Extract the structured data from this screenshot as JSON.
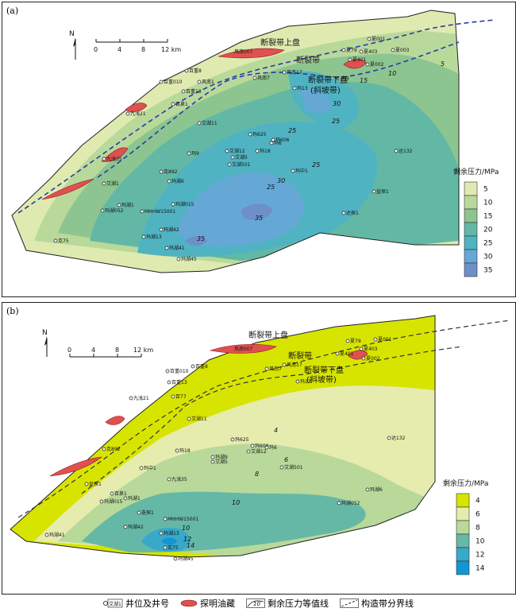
{
  "panel_a": {
    "label": "(a)",
    "legend_title": "剩余压力/MPa",
    "legend_values": [
      "5",
      "10",
      "15",
      "20",
      "25",
      "30",
      "35"
    ],
    "legend_colors": [
      "#dfeab0",
      "#b9d99a",
      "#8cc58f",
      "#63b8a5",
      "#4fb3c2",
      "#65a8d6",
      "#6e8fc8"
    ],
    "contour_labels": [
      "5",
      "10",
      "15",
      "20",
      "25",
      "25",
      "25",
      "25",
      "30",
      "30",
      "35",
      "35"
    ],
    "wells": [
      "风南7",
      "夏001",
      "夏79",
      "夏403",
      "夏401",
      "夏002",
      "夏003",
      "风南17",
      "玛13",
      "百重8",
      "风南1",
      "百重010",
      "百重13",
      "百泉1",
      "九浅21",
      "艾湖11",
      "玛625",
      "玛606",
      "玛6",
      "艾湖12",
      "玛18",
      "艾湖5",
      "艾湖501",
      "玛9",
      "达132",
      "九浅35",
      "克892",
      "玛中1",
      "盆探1",
      "玛湖6",
      "艾湖1",
      "玛湖1",
      "玛湖015",
      "MHHW15001",
      "玛湖052",
      "达探1",
      "玛湖13",
      "玛湖42",
      "克75",
      "玛湖41",
      "玛湖45"
    ],
    "zones": {
      "upper": "断裂带上盘",
      "fault": "断裂带",
      "lower": "断裂带下盘",
      "lower_sub": "(斜坡带)"
    },
    "oilfield_label": "风南007",
    "scale": {
      "north": "N",
      "ticks": [
        "0",
        "4",
        "8",
        "12 km"
      ]
    }
  },
  "panel_b": {
    "label": "(b)",
    "legend_title": "剩余压力/MPa",
    "legend_values": [
      "4",
      "6",
      "8",
      "10",
      "12",
      "14"
    ],
    "legend_colors": [
      "#d7e400",
      "#e6ecad",
      "#b8d99a",
      "#66b8a6",
      "#38a9c9",
      "#1296d4"
    ],
    "contour_labels": [
      "4",
      "6",
      "8",
      "10",
      "10",
      "12",
      "14"
    ],
    "wells": [
      "夏79",
      "夏001",
      "夏403",
      "夏401",
      "夏002",
      "风南7",
      "风南17",
      "玛13",
      "百重8",
      "百重010",
      "百重13",
      "九浅21",
      "百77",
      "艾湖11",
      "达132",
      "玛625",
      "玛606",
      "玛6",
      "艾湖12",
      "玛18",
      "玛湖9",
      "艾湖5",
      "艾湖501",
      "玛中1",
      "克892",
      "九浅35",
      "玛湖6",
      "盆探1",
      "百泉1",
      "玛湖1",
      "玛湖015",
      "玛湖052",
      "迭探1",
      "MHHW15001",
      "玛湖42",
      "玛湖13",
      "玛湖41",
      "克75",
      "玛湖45"
    ],
    "zones": {
      "upper": "断裂带上盘",
      "fault": "断裂带",
      "lower": "断裂带下盘",
      "lower_sub": "(斜坡带)"
    },
    "oilfield_label": "风南007",
    "scale": {
      "north": "N",
      "ticks": [
        "0",
        "4",
        "8",
        "12 km"
      ]
    }
  },
  "footer": {
    "well_label": "井位及井号",
    "well_sample": "艾湖1",
    "oil_label": "探明油藏",
    "contour_label": "剩余压力等值线",
    "contour_sample": "10",
    "boundary_label": "构造带分界线"
  }
}
